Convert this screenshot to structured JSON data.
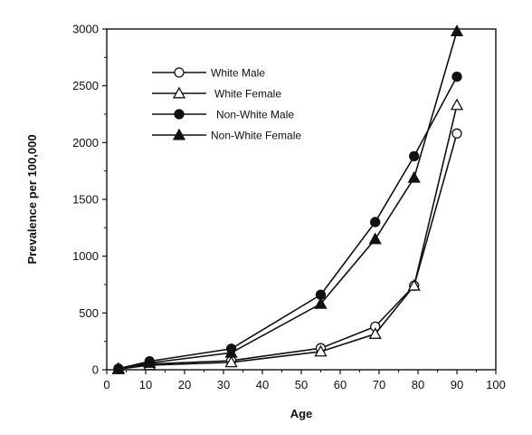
{
  "chart_data": {
    "type": "line",
    "title": "",
    "xlabel": "Age",
    "ylabel": "Prevalence  per  100,000",
    "xlim": [
      0,
      100
    ],
    "ylim": [
      0,
      3000
    ],
    "x_ticks": [
      "0",
      "10",
      "20",
      "30",
      "40",
      "50",
      "60",
      "70",
      "80",
      "90",
      "100"
    ],
    "y_ticks": [
      "0",
      "500",
      "1000",
      "1500",
      "2000",
      "2500",
      "3000"
    ],
    "grid": false,
    "legend_position": "top-left",
    "x": [
      3,
      11,
      32,
      55,
      69,
      79,
      90
    ],
    "series": [
      {
        "name": "White Male",
        "marker": "circle-open",
        "color": "#111111",
        "values": [
          5,
          50,
          80,
          190,
          380,
          740,
          2080
        ]
      },
      {
        "name": "White Female",
        "marker": "triangle-open",
        "color": "#111111",
        "values": [
          5,
          40,
          65,
          160,
          315,
          740,
          2330
        ]
      },
      {
        "name": "Non-White Male",
        "marker": "circle-filled",
        "color": "#111111",
        "values": [
          10,
          75,
          185,
          660,
          1300,
          1880,
          2580
        ]
      },
      {
        "name": "Non-White Female",
        "marker": "triangle-filled",
        "color": "#111111",
        "values": [
          10,
          60,
          150,
          580,
          1150,
          1690,
          2980
        ]
      }
    ]
  }
}
